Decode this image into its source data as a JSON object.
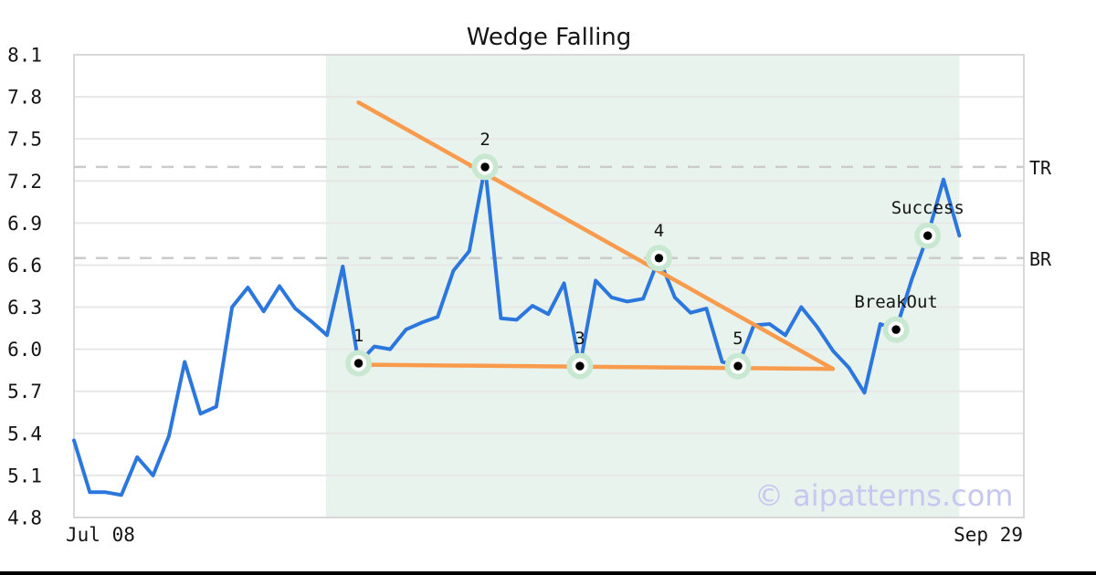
{
  "page": {
    "title": "Wedge Falling",
    "watermark": "© aipatterns.com"
  },
  "colors": {
    "series_line": "#2b77dd",
    "trendline": "#f89b4d",
    "marker_halo": "#c9e8d2",
    "marker_ring": "#ffffff",
    "marker_dot": "#000000",
    "level_dash": "#cbcbcb",
    "grid": "#e7e7e7",
    "plot_border": "#d8d8d8",
    "shade": "#e9f3ee",
    "text": "#141414",
    "watermark": "#c7c7ef"
  },
  "chart_data": {
    "type": "line",
    "title": "Wedge Falling",
    "xlabel": "",
    "ylabel": "",
    "x_axis": {
      "tick_labels": [
        "Jul 08",
        "Sep 29"
      ]
    },
    "y_axis": {
      "min": 4.8,
      "max": 8.1,
      "ticks": [
        4.8,
        5.1,
        5.4,
        5.7,
        6.0,
        6.3,
        6.6,
        6.9,
        7.2,
        7.5,
        7.8,
        8.1
      ]
    },
    "grid": true,
    "values": [
      5.35,
      4.98,
      4.98,
      4.96,
      5.23,
      5.1,
      5.38,
      5.91,
      5.54,
      5.59,
      6.3,
      6.44,
      6.27,
      6.45,
      6.29,
      6.2,
      6.1,
      6.59,
      5.9,
      6.02,
      6.0,
      6.14,
      6.19,
      6.23,
      6.56,
      6.7,
      7.3,
      6.22,
      6.21,
      6.31,
      6.25,
      6.47,
      5.88,
      6.49,
      6.37,
      6.34,
      6.36,
      6.65,
      6.37,
      6.26,
      6.29,
      5.91,
      5.88,
      6.17,
      6.18,
      6.1,
      6.3,
      6.16,
      5.99,
      5.87,
      5.69,
      6.18,
      6.14,
      6.5,
      6.81,
      7.21,
      6.81
    ],
    "pattern": {
      "name": "Wedge Falling",
      "shaded_region_indices": [
        16,
        56
      ],
      "points": [
        {
          "label": "1",
          "index": 18,
          "value": 5.9
        },
        {
          "label": "2",
          "index": 26,
          "value": 7.3
        },
        {
          "label": "3",
          "index": 32,
          "value": 5.88
        },
        {
          "label": "4",
          "index": 37,
          "value": 6.65
        },
        {
          "label": "5",
          "index": 42,
          "value": 5.88
        },
        {
          "label": "BreakOut",
          "index": 52,
          "value": 6.14
        },
        {
          "label": "Success",
          "index": 54,
          "value": 6.81
        }
      ],
      "trendlines": [
        {
          "name": "upper",
          "from_index": 18,
          "from_value": 7.76,
          "to_index": 48,
          "to_value": 5.86
        },
        {
          "name": "lower",
          "from_index": 18,
          "from_value": 5.89,
          "to_index": 48,
          "to_value": 5.86
        }
      ],
      "levels": [
        {
          "label": "TR",
          "value": 7.3
        },
        {
          "label": "BR",
          "value": 6.65
        }
      ]
    }
  }
}
